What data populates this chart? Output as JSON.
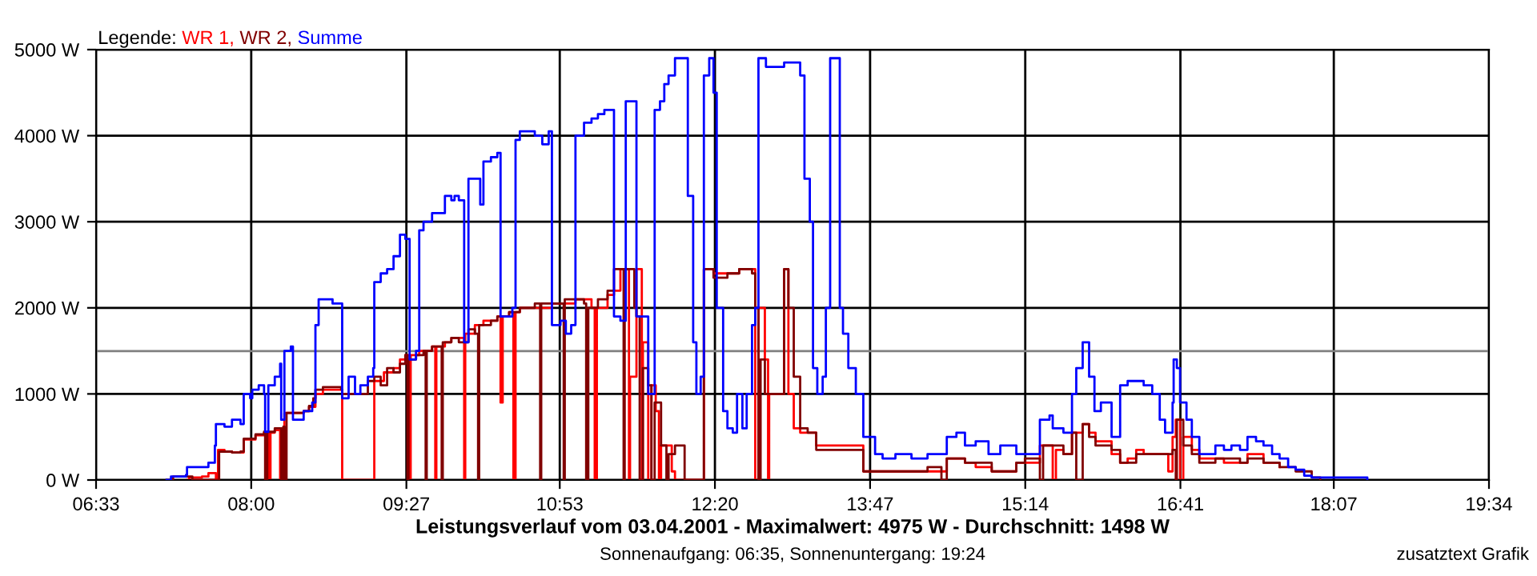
{
  "chart_data": {
    "type": "step",
    "title": "Leistungsverlauf vom 03.04.2001 - Maximalwert: 4975 W - Durchschnitt: 1498 W",
    "subtitle": "Sonnenaufgang: 06:35, Sonnenuntergang: 19:24",
    "annotations": [
      "zusatztext Grafik"
    ],
    "legend_title": "Legende:",
    "legend": "top left",
    "grid": true,
    "xlim": [
      6.55,
      19.5667
    ],
    "xticks": [
      {
        "value": 6.55,
        "label": "06:33"
      },
      {
        "value": 8.0,
        "label": "08:00"
      },
      {
        "value": 9.45,
        "label": "09:27"
      },
      {
        "value": 10.8833,
        "label": "10:53"
      },
      {
        "value": 12.3333,
        "label": "12:20"
      },
      {
        "value": 13.7833,
        "label": "13:47"
      },
      {
        "value": 15.2333,
        "label": "15:14"
      },
      {
        "value": 16.6833,
        "label": "16:41"
      },
      {
        "value": 18.1167,
        "label": "18:07"
      },
      {
        "value": 19.5667,
        "label": "19:34"
      }
    ],
    "ylim": [
      0,
      5000
    ],
    "yticks": [
      {
        "value": 0,
        "label": "0 W"
      },
      {
        "value": 1000,
        "label": "1000 W"
      },
      {
        "value": 2000,
        "label": "2000 W"
      },
      {
        "value": 3000,
        "label": "3000 W"
      },
      {
        "value": 4000,
        "label": "4000 W"
      },
      {
        "value": 5000,
        "label": "5000 W"
      }
    ],
    "ref_lines": [
      {
        "axis": "y",
        "value": 1498,
        "color": "#808080"
      }
    ],
    "series": [
      {
        "name": "WR 1,",
        "color": "#ff0000",
        "x": [
          7.4,
          7.42,
          7.54,
          7.6,
          7.66,
          7.67,
          7.69,
          7.75,
          7.82,
          7.9,
          7.93,
          7.99,
          8.04,
          8.12,
          8.16,
          8.18,
          8.22,
          8.27,
          8.28,
          8.31,
          8.37,
          8.49,
          8.54,
          8.6,
          8.67,
          8.84,
          8.85,
          9.14,
          9.15,
          9.24,
          9.33,
          9.39,
          9.44,
          9.48,
          9.49,
          9.57,
          9.61,
          9.69,
          9.72,
          9.73,
          9.81,
          9.87,
          9.94,
          9.99,
          10.0,
          10.09,
          10.17,
          10.3,
          10.33,
          10.35,
          10.41,
          10.45,
          10.47,
          10.51,
          10.81,
          11.03,
          11.11,
          11.18,
          11.21,
          11.23,
          11.33,
          11.39,
          11.45,
          11.5,
          11.53,
          11.54,
          11.6,
          11.65,
          11.66,
          11.71,
          11.74,
          11.78,
          11.81,
          11.83,
          11.93,
          11.96,
          12.2,
          12.23,
          12.32,
          12.45,
          12.56,
          12.68,
          12.71,
          12.74,
          12.8,
          12.83,
          12.84,
          12.92,
          12.98,
          13.02,
          13.07,
          13.13,
          13.2,
          13.28,
          13.72,
          14.02,
          14.32,
          14.5,
          14.59,
          14.67,
          14.77,
          14.92,
          15.15,
          15.23,
          15.37,
          15.46,
          15.49,
          15.52,
          15.59,
          15.67,
          15.77,
          15.83,
          15.89,
          15.99,
          16.04,
          16.12,
          16.19,
          16.27,
          16.34,
          16.49,
          16.57,
          16.61,
          16.64,
          16.68,
          16.71,
          16.79,
          16.86,
          17.01,
          17.09,
          17.24,
          17.31,
          17.46,
          17.61
        ],
        "values": [
          0,
          30,
          40,
          80,
          80,
          0,
          350,
          330,
          320,
          320,
          470,
          470,
          520,
          550,
          0,
          550,
          580,
          0,
          600,
          780,
          780,
          800,
          850,
          1000,
          1050,
          1050,
          0,
          0,
          1150,
          1250,
          1300,
          1400,
          1450,
          0,
          1450,
          1500,
          1500,
          1550,
          0,
          1550,
          1600,
          1650,
          1650,
          0,
          1700,
          1800,
          1850,
          1900,
          900,
          1900,
          1950,
          0,
          1950,
          2000,
          2050,
          2100,
          2100,
          2000,
          0,
          2000,
          2150,
          2200,
          2450,
          2450,
          0,
          1200,
          2450,
          0,
          1600,
          0,
          1100,
          800,
          0,
          400,
          100,
          0,
          0,
          2450,
          2400,
          2400,
          2450,
          2450,
          0,
          2000,
          1400,
          0,
          1000,
          1000,
          2450,
          1000,
          600,
          550,
          550,
          400,
          100,
          100,
          100,
          250,
          250,
          200,
          150,
          100,
          200,
          200,
          400,
          400,
          0,
          350,
          300,
          550,
          650,
          550,
          450,
          450,
          300,
          200,
          250,
          350,
          300,
          300,
          100,
          500,
          700,
          0,
          500,
          350,
          250,
          250,
          200,
          200,
          300,
          200,
          150
        ]
      },
      {
        "name": "WR 2,",
        "color": "#800000",
        "x": [
          7.21,
          7.27,
          7.4,
          7.45,
          7.69,
          7.7,
          7.82,
          7.9,
          7.93,
          8.04,
          8.12,
          8.13,
          8.15,
          8.22,
          8.28,
          8.3,
          8.31,
          8.33,
          8.49,
          8.54,
          8.58,
          8.6,
          8.67,
          8.84,
          8.85,
          8.97,
          9.09,
          9.15,
          9.21,
          9.27,
          9.33,
          9.39,
          9.44,
          9.46,
          9.47,
          9.54,
          9.61,
          9.63,
          9.64,
          9.69,
          9.76,
          9.78,
          9.79,
          9.87,
          9.94,
          10.0,
          10.03,
          10.09,
          10.12,
          10.13,
          10.24,
          10.3,
          10.33,
          10.41,
          10.51,
          10.65,
          10.7,
          10.71,
          10.81,
          10.89,
          10.92,
          10.93,
          11.03,
          11.11,
          11.13,
          11.15,
          11.24,
          11.33,
          11.39,
          11.45,
          11.48,
          11.49,
          11.58,
          11.6,
          11.63,
          11.66,
          11.71,
          11.74,
          11.77,
          11.83,
          11.88,
          11.9,
          11.96,
          12.05,
          12.2,
          12.23,
          12.32,
          12.45,
          12.56,
          12.68,
          12.71,
          12.74,
          12.76,
          12.8,
          12.92,
          12.98,
          13.02,
          13.07,
          13.13,
          13.2,
          13.28,
          13.72,
          14.02,
          14.32,
          14.45,
          14.5,
          14.67,
          14.92,
          15.15,
          15.23,
          15.37,
          15.4,
          15.49,
          15.59,
          15.67,
          15.71,
          15.77,
          15.83,
          15.89,
          15.99,
          16.04,
          16.12,
          16.27,
          16.49,
          16.61,
          16.64,
          16.65,
          16.68,
          16.71,
          16.79,
          16.86,
          17.01,
          17.24,
          17.31,
          17.46,
          17.61,
          17.76,
          17.91,
          17.99
        ],
        "values": [
          0,
          40,
          40,
          0,
          0,
          330,
          320,
          330,
          480,
          530,
          560,
          0,
          560,
          600,
          0,
          620,
          0,
          780,
          800,
          860,
          950,
          1050,
          1080,
          1050,
          1000,
          1000,
          1150,
          1200,
          1100,
          1300,
          1250,
          1350,
          1450,
          0,
          1400,
          1450,
          1500,
          0,
          1500,
          1550,
          1550,
          0,
          1600,
          1650,
          1600,
          1600,
          1750,
          1700,
          0,
          1800,
          1850,
          1900,
          1900,
          1950,
          2000,
          2050,
          0,
          2050,
          2050,
          2050,
          0,
          2100,
          2100,
          2050,
          0,
          2000,
          2100,
          2200,
          2450,
          2450,
          0,
          2450,
          2000,
          1900,
          0,
          1300,
          1100,
          0,
          900,
          400,
          0,
          300,
          400,
          0,
          0,
          2450,
          2350,
          2400,
          2450,
          2400,
          2000,
          0,
          1400,
          1000,
          1000,
          2450,
          2000,
          1200,
          600,
          550,
          350,
          100,
          100,
          150,
          0,
          250,
          200,
          100,
          200,
          250,
          0,
          400,
          400,
          300,
          550,
          0,
          650,
          500,
          400,
          400,
          350,
          200,
          300,
          300,
          350,
          0,
          700,
          700,
          400,
          300,
          200,
          250,
          200,
          250,
          200,
          150,
          100,
          30,
          0
        ]
      },
      {
        "name": "Summe",
        "color": "#0000ff",
        "x": [
          7.21,
          7.25,
          7.39,
          7.4,
          7.54,
          7.6,
          7.66,
          7.67,
          7.75,
          7.82,
          7.9,
          7.93,
          7.99,
          8.01,
          8.07,
          8.12,
          8.13,
          8.16,
          8.22,
          8.27,
          8.28,
          8.31,
          8.37,
          8.39,
          8.49,
          8.57,
          8.6,
          8.63,
          8.67,
          8.76,
          8.84,
          8.85,
          8.91,
          8.97,
          9.02,
          9.09,
          9.14,
          9.15,
          9.21,
          9.27,
          9.33,
          9.39,
          9.44,
          9.48,
          9.54,
          9.57,
          9.61,
          9.69,
          9.76,
          9.81,
          9.87,
          9.9,
          9.94,
          9.99,
          10.03,
          10.09,
          10.14,
          10.17,
          10.24,
          10.3,
          10.33,
          10.41,
          10.44,
          10.47,
          10.51,
          10.65,
          10.72,
          10.78,
          10.81,
          10.89,
          10.94,
          10.99,
          11.03,
          11.11,
          11.18,
          11.24,
          11.3,
          11.33,
          11.39,
          11.45,
          11.5,
          11.56,
          11.6,
          11.66,
          11.71,
          11.77,
          11.82,
          11.86,
          11.9,
          11.93,
          11.96,
          12.05,
          12.08,
          12.13,
          12.16,
          12.2,
          12.23,
          12.28,
          12.32,
          12.35,
          12.41,
          12.45,
          12.5,
          12.54,
          12.59,
          12.63,
          12.68,
          12.71,
          12.74,
          12.81,
          12.9,
          12.98,
          13.07,
          13.13,
          13.17,
          13.22,
          13.25,
          13.29,
          13.34,
          13.37,
          13.41,
          13.46,
          13.5,
          13.53,
          13.58,
          13.65,
          13.72,
          13.83,
          13.9,
          14.02,
          14.17,
          14.32,
          14.4,
          14.5,
          14.59,
          14.67,
          14.77,
          14.89,
          15.0,
          15.15,
          15.23,
          15.37,
          15.46,
          15.49,
          15.59,
          15.67,
          15.71,
          15.77,
          15.83,
          15.88,
          15.94,
          15.99,
          16.04,
          16.12,
          16.19,
          16.27,
          16.34,
          16.42,
          16.49,
          16.54,
          16.61,
          16.62,
          16.65,
          16.68,
          16.74,
          16.79,
          16.86,
          17.01,
          17.09,
          17.16,
          17.24,
          17.31,
          17.39,
          17.46,
          17.54,
          17.61,
          17.69,
          17.76,
          17.84,
          17.91,
          17.99,
          18.4,
          18.43
        ],
        "values": [
          0,
          40,
          60,
          150,
          150,
          200,
          400,
          650,
          620,
          700,
          650,
          1000,
          950,
          1050,
          1100,
          1000,
          560,
          1100,
          1200,
          1350,
          700,
          1500,
          1550,
          700,
          800,
          900,
          1800,
          2100,
          2100,
          2050,
          2050,
          950,
          1200,
          1000,
          1100,
          1200,
          1300,
          2300,
          2400,
          2450,
          2600,
          2850,
          2800,
          1400,
          1500,
          2900,
          3000,
          3100,
          3100,
          3300,
          3250,
          3300,
          3250,
          1600,
          3500,
          3500,
          3200,
          3700,
          3750,
          3800,
          1900,
          1900,
          2000,
          3950,
          4050,
          4000,
          3900,
          4050,
          1800,
          1850,
          1700,
          1800,
          4000,
          4150,
          4200,
          4250,
          4300,
          4300,
          1900,
          1850,
          4400,
          4400,
          1900,
          1900,
          1000,
          4300,
          4400,
          4600,
          4700,
          4700,
          4900,
          4900,
          3300,
          1600,
          1000,
          1200,
          4700,
          4900,
          4500,
          2000,
          800,
          600,
          550,
          1000,
          600,
          1000,
          1800,
          2000,
          4900,
          4800,
          4800,
          4850,
          4850,
          4700,
          3500,
          3000,
          1300,
          1000,
          1200,
          2000,
          4900,
          4900,
          2000,
          1700,
          1300,
          1000,
          500,
          300,
          250,
          300,
          250,
          300,
          300,
          500,
          550,
          400,
          450,
          300,
          400,
          300,
          300,
          700,
          750,
          600,
          550,
          1000,
          1300,
          1600,
          1200,
          800,
          900,
          900,
          500,
          1100,
          1150,
          1150,
          1100,
          1000,
          700,
          550,
          900,
          1400,
          1300,
          900,
          700,
          500,
          300,
          400,
          350,
          400,
          350,
          500,
          450,
          400,
          300,
          250,
          150,
          120,
          50,
          30,
          30,
          30,
          0
        ]
      }
    ]
  }
}
